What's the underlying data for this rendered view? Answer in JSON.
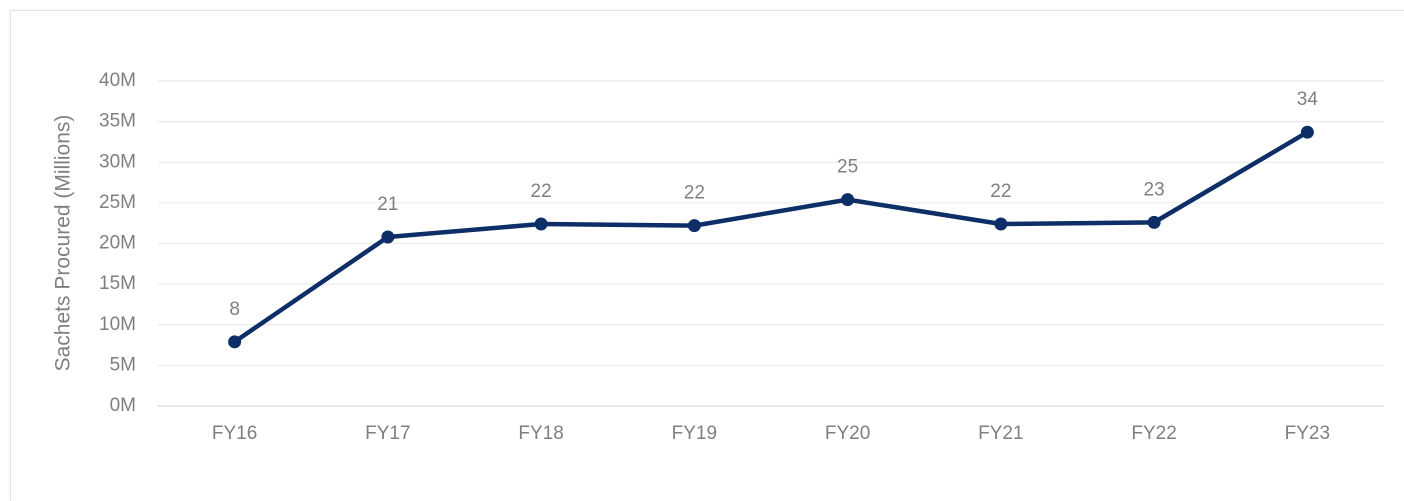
{
  "chart_data": {
    "type": "line",
    "y_label": "Sachets Procured (Millions)",
    "categories": [
      "FY16",
      "FY17",
      "FY18",
      "FY19",
      "FY20",
      "FY21",
      "FY22",
      "FY23"
    ],
    "series": [
      {
        "color": "#0d2e66",
        "values": [
          7.9,
          20.8,
          22.4,
          22.2,
          25.4,
          22.4,
          22.6,
          33.7
        ],
        "value_labels": [
          "8",
          "21",
          "22",
          "22",
          "25",
          "22",
          "23",
          "34"
        ]
      }
    ],
    "ylim": [
      0,
      40
    ],
    "yticks": [
      {
        "value": 0,
        "label": "0M"
      },
      {
        "value": 5,
        "label": "5M"
      },
      {
        "value": 10,
        "label": "10M"
      },
      {
        "value": 15,
        "label": "15M"
      },
      {
        "value": 20,
        "label": "20M"
      },
      {
        "value": 25,
        "label": "25M"
      },
      {
        "value": 30,
        "label": "30M"
      },
      {
        "value": 35,
        "label": "35M"
      },
      {
        "value": 40,
        "label": "40M"
      }
    ],
    "grid": true
  }
}
